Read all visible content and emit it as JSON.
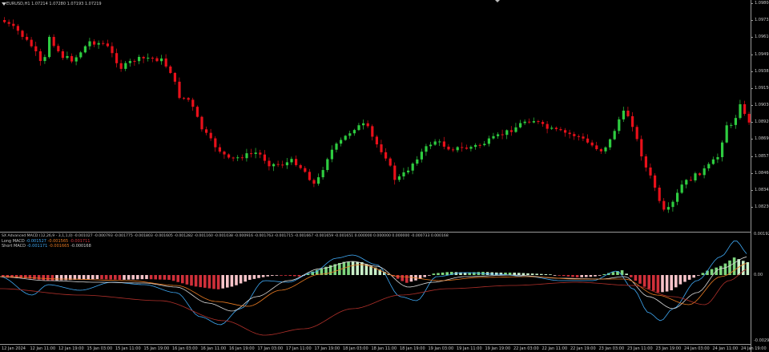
{
  "symbol_header": "EURUSD,H1  1.07214 1.07280 1.07193 1.07219",
  "indicator": {
    "title": "SX Advanced MACD (12,26,9 - 3,1,1,0) -0.001027 -0.000793 -0.001775 -0.001803 -0.001605 -0.001282 -0.001160 -0.001038 -0.000916 -0.001763 -0.001715 -0.001667 -0.001659 -0.001651 0.000000 0.000000 0.000000 -0.000733 0.000168",
    "long_line_label": "Long MACD",
    "long_line_values": [
      "-0.001527",
      "-0.001565",
      "-0.001711"
    ],
    "short_line_label": "Short MACD",
    "short_line_values": [
      "-0.001171",
      "-0.001665",
      "-0.000168"
    ]
  },
  "price_axis_labels": [
    "1.09804",
    "1.09735",
    "1.09616",
    "1.09495",
    "1.09388",
    "1.09150",
    "1.09036",
    "1.08920",
    "1.08690",
    "1.08575",
    "1.08460",
    "1.08345",
    "1.08230"
  ],
  "indicator_axis_labels": [
    "0.001927",
    "0.00",
    "-0.002939"
  ],
  "time_axis_labels": [
    "12 Jan 2024",
    "12 Jan 11:00",
    "12 Jan 19:00",
    "15 Jan 03:00",
    "15 Jan 11:00",
    "15 Jan 19:00",
    "16 Jan 03:00",
    "16 Jan 11:00",
    "16 Jan 19:00",
    "17 Jan 03:00",
    "17 Jan 11:00",
    "17 Jan 19:00",
    "18 Jan 03:00",
    "18 Jan 11:00",
    "18 Jan 19:00",
    "19 Jan 03:00",
    "19 Jan 11:00",
    "19 Jan 19:00",
    "22 Jan 03:00",
    "22 Jan 11:00",
    "22 Jan 19:00",
    "23 Jan 03:00",
    "23 Jan 11:00",
    "23 Jan 19:00",
    "24 Jan 03:00",
    "24 Jan 11:00",
    "24 Jan 19:00"
  ],
  "colors": {
    "background": "#000000",
    "bull_candle": "#2ecc40",
    "bear_candle": "#e8101a",
    "hist_pos_strong": "#7ed67e",
    "hist_pos_light": "#c9f0c9",
    "hist_neg_strong": "#d0303a",
    "hist_neg_light": "#f6c3c8",
    "macd_line": "#3fa9f5",
    "signal_line": "#e87a22",
    "third_line": "#d8d8d8",
    "axis": "#9a9a9a"
  }
}
